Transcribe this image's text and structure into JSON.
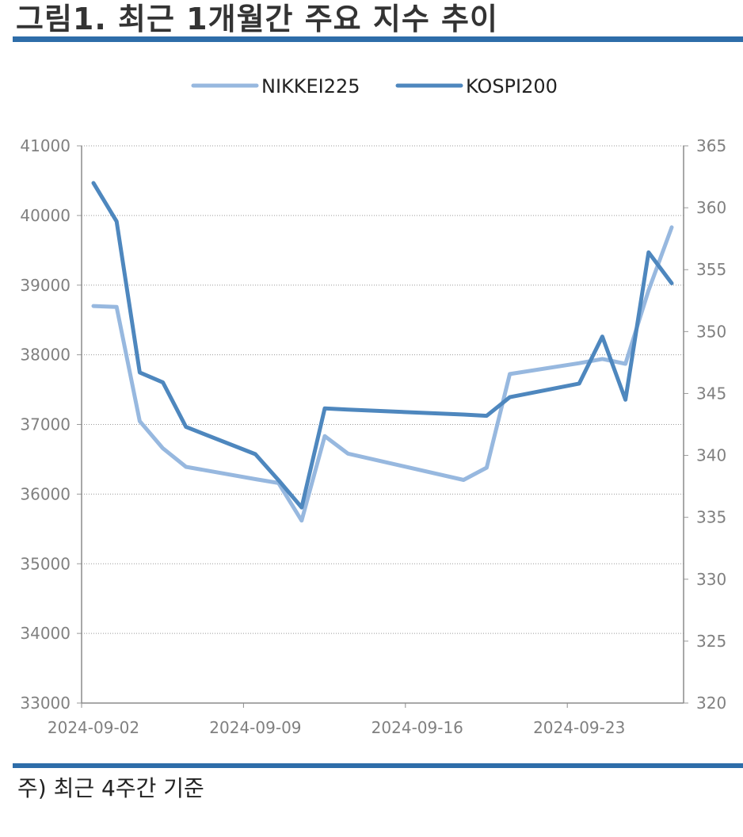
{
  "header": {
    "title": "그림1. 최근 1개월간 주요 지수 추이"
  },
  "footer": {
    "note": "주) 최근 4주간 기준"
  },
  "colors": {
    "rule": "#2e6da9",
    "nikkei": "#97b8df",
    "kospi": "#4e87be"
  },
  "chart_data": {
    "type": "line",
    "title": "",
    "legend_position": "top-center",
    "grid": "horizontal-dotted",
    "x": [
      "2024-09-02",
      "2024-09-03",
      "2024-09-04",
      "2024-09-05",
      "2024-09-06",
      "2024-09-09",
      "2024-09-10",
      "2024-09-11",
      "2024-09-12",
      "2024-09-13",
      "2024-09-18",
      "2024-09-19",
      "2024-09-20",
      "2024-09-23",
      "2024-09-24",
      "2024-09-25",
      "2024-09-26",
      "2024-09-27"
    ],
    "x_ticks": [
      "2024-09-02",
      "2024-09-09",
      "2024-09-16",
      "2024-09-23"
    ],
    "series": [
      {
        "name": "NIKKEI225",
        "axis": "left",
        "values": [
          38700,
          38686,
          37047,
          36657,
          36391,
          36215,
          36159,
          35620,
          36833,
          36581,
          36203,
          36380,
          37724,
          37880,
          37940,
          37870,
          38926,
          39830
        ]
      },
      {
        "name": "KOSPI200",
        "axis": "right",
        "values": [
          362.0,
          358.9,
          346.7,
          345.9,
          342.3,
          340.1,
          338.0,
          335.8,
          343.8,
          343.7,
          343.3,
          343.2,
          344.7,
          345.8,
          349.6,
          344.5,
          356.4,
          353.9
        ]
      }
    ],
    "left_axis": {
      "ylim": [
        33000,
        41000
      ],
      "ticks": [
        "33000",
        "34000",
        "35000",
        "36000",
        "37000",
        "38000",
        "39000",
        "40000",
        "41000"
      ]
    },
    "right_axis": {
      "ylim": [
        320,
        365
      ],
      "ticks": [
        "320",
        "325",
        "330",
        "335",
        "340",
        "345",
        "350",
        "355",
        "360",
        "365"
      ]
    }
  }
}
